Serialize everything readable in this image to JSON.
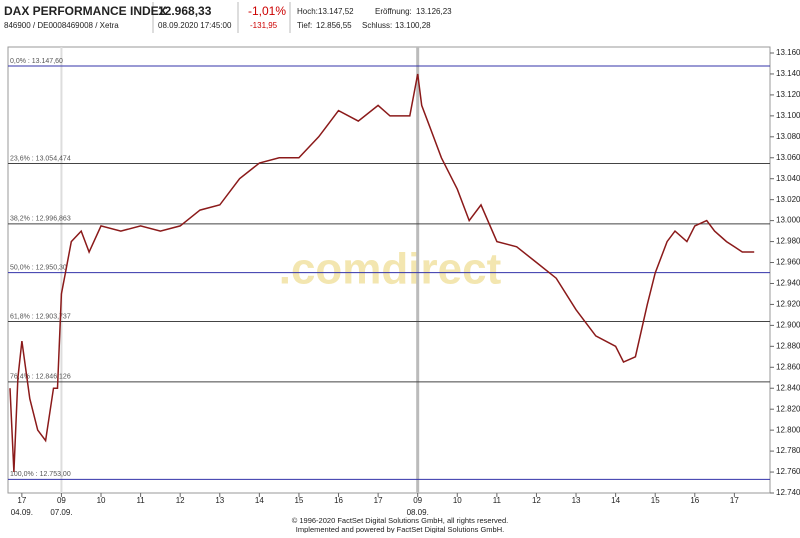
{
  "header": {
    "title": "DAX PERFORMANCE INDEX",
    "ids": "846900 / DE0008469008 / Xetra",
    "price": "12.968,33",
    "datetime": "08.09.2020 17:45:00",
    "change_pct": "-1,01%",
    "change_abs": "-131,95",
    "stats": [
      {
        "label": "Hoch:",
        "value": "13.147,52"
      },
      {
        "label": "Eröffnung:",
        "value": "13.126,23"
      },
      {
        "label": "Tief:",
        "value": "12.856,55"
      },
      {
        "label": "Schluss:",
        "value": "13.100,28"
      }
    ]
  },
  "chart_data": {
    "type": "line",
    "color": "#8b1a1a",
    "watermark": ".comdirect",
    "x": [
      -0.3,
      -0.2,
      -0.1,
      0,
      0.2,
      0.4,
      0.6,
      0.8,
      0.9,
      1.0,
      1.1,
      1.25,
      1.5,
      1.7,
      2.0,
      2.5,
      3.0,
      3.5,
      4.0,
      4.5,
      5.0,
      5.5,
      6.0,
      6.5,
      7.0,
      7.5,
      7.8,
      8.0,
      8.5,
      9.0,
      9.3,
      9.8,
      10.0,
      10.1,
      10.3,
      10.6,
      11.0,
      11.3,
      11.6,
      12.0,
      12.5,
      13.0,
      13.5,
      14.0,
      14.5,
      15.0,
      15.2,
      15.5,
      15.8,
      16.0,
      16.3,
      16.5,
      16.8,
      17.0,
      17.3,
      17.5,
      17.8,
      18.0,
      18.2,
      18.5
    ],
    "values": [
      12840,
      12760,
      12850,
      12885,
      12830,
      12800,
      12790,
      12840,
      12840,
      12930,
      12950,
      12980,
      12990,
      12970,
      12995,
      12990,
      12995,
      12990,
      12995,
      13010,
      13015,
      13040,
      13055,
      13060,
      13060,
      13080,
      13095,
      13105,
      13095,
      13110,
      13100,
      13100,
      13140,
      13110,
      13090,
      13060,
      13030,
      13000,
      13015,
      12980,
      12975,
      12960,
      12945,
      12915,
      12890,
      12880,
      12865,
      12870,
      12920,
      12950,
      12980,
      12990,
      12980,
      12995,
      13000,
      12990,
      12980,
      12975,
      12970,
      12970
    ],
    "xlim": [
      -0.35,
      18.9
    ],
    "xticks": [
      {
        "value": 0,
        "label": "17"
      },
      {
        "value": 1,
        "label": "09"
      },
      {
        "value": 2,
        "label": "10"
      },
      {
        "value": 3,
        "label": "11"
      },
      {
        "value": 4,
        "label": "12"
      },
      {
        "value": 5,
        "label": "13"
      },
      {
        "value": 6,
        "label": "14"
      },
      {
        "value": 7,
        "label": "15"
      },
      {
        "value": 8,
        "label": "16"
      },
      {
        "value": 9,
        "label": "17"
      },
      {
        "value": 10,
        "label": "09"
      },
      {
        "value": 11,
        "label": "10"
      },
      {
        "value": 12,
        "label": "11"
      },
      {
        "value": 13,
        "label": "12"
      },
      {
        "value": 14,
        "label": "13"
      },
      {
        "value": 15,
        "label": "14"
      },
      {
        "value": 16,
        "label": "15"
      },
      {
        "value": 17,
        "label": "16"
      },
      {
        "value": 18,
        "label": "17"
      }
    ],
    "day_labels": [
      {
        "value": 0,
        "label": "04.09."
      },
      {
        "value": 1,
        "label": "07.09."
      },
      {
        "value": 10,
        "label": "08.09."
      }
    ],
    "ylim": [
      12740,
      13160
    ],
    "yticks": [
      {
        "value": 12740,
        "label": "12.740"
      },
      {
        "value": 12760,
        "label": "12.760"
      },
      {
        "value": 12780,
        "label": "12.780"
      },
      {
        "value": 12800,
        "label": "12.800"
      },
      {
        "value": 12820,
        "label": "12.820"
      },
      {
        "value": 12840,
        "label": "12.840"
      },
      {
        "value": 12860,
        "label": "12.860"
      },
      {
        "value": 12880,
        "label": "12.880"
      },
      {
        "value": 12900,
        "label": "12.900"
      },
      {
        "value": 12920,
        "label": "12.920"
      },
      {
        "value": 12940,
        "label": "12.940"
      },
      {
        "value": 12960,
        "label": "12.960"
      },
      {
        "value": 12980,
        "label": "12.980"
      },
      {
        "value": 13000,
        "label": "13.000"
      },
      {
        "value": 13020,
        "label": "13.020"
      },
      {
        "value": 13040,
        "label": "13.040"
      },
      {
        "value": 13060,
        "label": "13.060"
      },
      {
        "value": 13080,
        "label": "13.080"
      },
      {
        "value": 13100,
        "label": "13.100"
      },
      {
        "value": 13120,
        "label": "13.120"
      },
      {
        "value": 13140,
        "label": "13.140"
      },
      {
        "value": 13160,
        "label": "13.160"
      }
    ],
    "levels": [
      {
        "value": 13147.6,
        "label": "0,0% : 13.147,60",
        "color": "#3333aa"
      },
      {
        "value": 13054.474,
        "label": "23,6% : 13.054,474",
        "color": "#444444"
      },
      {
        "value": 12996.863,
        "label": "38,2% : 12.996,863",
        "color": "#444444"
      },
      {
        "value": 12950.3,
        "label": "50,0% : 12.950,30",
        "color": "#3333aa"
      },
      {
        "value": 12903.737,
        "label": "61,8% : 12.903,737",
        "color": "#444444"
      },
      {
        "value": 12846.126,
        "label": "76,4% : 12.846,126",
        "color": "#444444"
      },
      {
        "value": 12753,
        "label": "100,0% : 12.753,00",
        "color": "#3333aa"
      }
    ],
    "footer": [
      "© 1996-2020 FactSet Digital Solutions GmbH, all rights reserved.",
      "Implemented and powered by FactSet Digital Solutions GmbH."
    ]
  }
}
